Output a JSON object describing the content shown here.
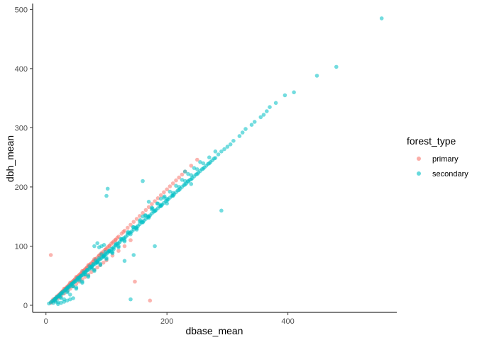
{
  "chart_data": {
    "type": "scatter",
    "title": "",
    "xlabel": "dbase_mean",
    "ylabel": "dbh_mean",
    "xlim": [
      -22,
      580
    ],
    "ylim": [
      -12,
      510
    ],
    "x_ticks": [
      0,
      200,
      400
    ],
    "y_ticks": [
      0,
      100,
      200,
      300,
      400,
      500
    ],
    "grid": false,
    "legend": {
      "title": "forest_type",
      "placement": "right"
    },
    "series": [
      {
        "name": "primary",
        "color": "#F8766D",
        "x": [
          8,
          10,
          12,
          14,
          15,
          16,
          18,
          20,
          22,
          24,
          25,
          26,
          28,
          30,
          30,
          32,
          34,
          35,
          36,
          38,
          40,
          40,
          42,
          44,
          45,
          46,
          48,
          50,
          50,
          52,
          54,
          55,
          56,
          58,
          60,
          60,
          62,
          64,
          65,
          66,
          68,
          70,
          70,
          72,
          74,
          75,
          78,
          80,
          80,
          82,
          85,
          88,
          90,
          92,
          95,
          98,
          100,
          102,
          105,
          108,
          110,
          112,
          115,
          118,
          120,
          125,
          128,
          130,
          135,
          140,
          145,
          150,
          155,
          160,
          165,
          170,
          175,
          180,
          185,
          190,
          195,
          200,
          205,
          210,
          215,
          220,
          225,
          230,
          240,
          250,
          8,
          172,
          147,
          15,
          20,
          25,
          30,
          35,
          40,
          45,
          50,
          55,
          60,
          65,
          70,
          75,
          80,
          85,
          90,
          95,
          100,
          110,
          120,
          130,
          140,
          12,
          18,
          22,
          28,
          32,
          38,
          42,
          48,
          52,
          58,
          62,
          68,
          72,
          78,
          82,
          88,
          92,
          98,
          105,
          115
        ],
        "y": [
          4,
          6,
          8,
          10,
          11,
          12,
          14,
          16,
          18,
          20,
          21,
          22,
          24,
          26,
          28,
          28,
          30,
          31,
          32,
          34,
          36,
          38,
          38,
          40,
          41,
          42,
          44,
          46,
          48,
          48,
          50,
          51,
          52,
          54,
          56,
          58,
          58,
          60,
          61,
          62,
          64,
          66,
          68,
          68,
          70,
          71,
          74,
          76,
          78,
          78,
          81,
          84,
          86,
          88,
          91,
          94,
          96,
          98,
          101,
          104,
          106,
          108,
          111,
          114,
          116,
          121,
          124,
          126,
          131,
          136,
          141,
          146,
          151,
          156,
          161,
          166,
          171,
          176,
          181,
          186,
          191,
          196,
          201,
          206,
          211,
          216,
          221,
          226,
          236,
          246,
          85,
          8,
          40,
          8,
          12,
          16,
          20,
          24,
          28,
          32,
          36,
          40,
          44,
          48,
          52,
          56,
          60,
          64,
          68,
          72,
          76,
          84,
          92,
          100,
          110,
          10,
          15,
          18,
          24,
          28,
          34,
          38,
          44,
          48,
          54,
          58,
          64,
          68,
          74,
          78,
          84,
          88,
          94,
          100,
          110
        ]
      },
      {
        "name": "secondary",
        "color": "#00BFC4",
        "x": [
          5,
          8,
          10,
          12,
          14,
          15,
          16,
          18,
          20,
          22,
          24,
          25,
          26,
          28,
          30,
          32,
          34,
          35,
          36,
          38,
          40,
          42,
          44,
          45,
          46,
          48,
          50,
          52,
          54,
          55,
          56,
          58,
          60,
          62,
          64,
          65,
          66,
          68,
          70,
          72,
          74,
          75,
          76,
          78,
          80,
          82,
          84,
          85,
          86,
          88,
          90,
          92,
          94,
          95,
          96,
          98,
          100,
          102,
          104,
          105,
          108,
          110,
          112,
          115,
          118,
          120,
          122,
          125,
          128,
          130,
          132,
          135,
          138,
          140,
          142,
          145,
          148,
          150,
          152,
          155,
          158,
          160,
          162,
          165,
          168,
          170,
          172,
          175,
          178,
          180,
          182,
          185,
          188,
          190,
          192,
          195,
          198,
          200,
          202,
          205,
          208,
          210,
          212,
          215,
          218,
          220,
          222,
          225,
          228,
          230,
          232,
          235,
          238,
          240,
          242,
          245,
          248,
          250,
          252,
          255,
          258,
          260,
          262,
          265,
          268,
          270,
          272,
          275,
          278,
          280,
          285,
          290,
          295,
          300,
          305,
          310,
          320,
          325,
          330,
          340,
          345,
          355,
          360,
          365,
          370,
          380,
          395,
          410,
          448,
          480,
          555,
          100,
          102,
          140,
          160,
          170,
          180,
          230,
          235,
          240,
          290,
          20,
          30,
          40,
          50,
          60,
          70,
          80,
          90,
          100,
          110,
          120,
          130,
          150,
          170,
          190,
          210,
          25,
          35,
          45,
          55,
          65,
          75,
          85,
          95,
          105,
          115,
          125,
          135,
          145,
          155,
          165,
          175,
          185,
          195,
          205,
          215,
          225,
          235,
          245,
          255,
          15,
          18,
          22,
          28,
          32,
          38,
          42,
          48,
          52,
          58,
          62,
          68,
          72,
          78,
          82,
          88,
          92,
          98,
          50,
          60,
          70,
          80,
          90,
          100,
          110,
          120,
          130,
          140,
          150,
          160,
          170,
          180,
          190,
          200,
          210,
          220,
          230,
          240,
          250,
          260,
          270,
          280,
          20,
          25,
          30,
          35,
          40,
          45,
          12,
          16,
          24,
          36,
          44,
          56,
          64,
          76,
          84,
          96,
          104,
          116,
          124,
          136,
          144,
          156,
          164,
          176,
          184,
          196,
          80,
          85,
          88,
          92,
          96,
          108,
          112,
          130,
          145,
          160,
          175,
          190,
          200
        ],
        "y": [
          3,
          5,
          7,
          8,
          10,
          11,
          12,
          14,
          15,
          17,
          19,
          20,
          21,
          23,
          24,
          26,
          28,
          29,
          30,
          32,
          33,
          35,
          37,
          38,
          39,
          41,
          42,
          44,
          46,
          47,
          48,
          50,
          51,
          53,
          55,
          56,
          57,
          59,
          60,
          62,
          64,
          65,
          66,
          68,
          69,
          71,
          73,
          74,
          75,
          77,
          78,
          80,
          82,
          83,
          84,
          86,
          87,
          89,
          91,
          92,
          95,
          96,
          98,
          101,
          104,
          105,
          107,
          110,
          113,
          114,
          116,
          119,
          122,
          123,
          125,
          128,
          131,
          132,
          134,
          137,
          140,
          141,
          143,
          146,
          149,
          150,
          152,
          155,
          158,
          159,
          161,
          164,
          167,
          168,
          170,
          173,
          176,
          177,
          179,
          182,
          185,
          186,
          188,
          191,
          194,
          195,
          197,
          200,
          203,
          204,
          206,
          209,
          212,
          213,
          215,
          218,
          221,
          222,
          224,
          227,
          230,
          231,
          233,
          236,
          239,
          240,
          242,
          245,
          248,
          249,
          255,
          260,
          264,
          268,
          272,
          278,
          286,
          292,
          298,
          305,
          310,
          318,
          322,
          328,
          335,
          342,
          355,
          360,
          388,
          403,
          485,
          185,
          197,
          10,
          210,
          175,
          100,
          226,
          210,
          205,
          160,
          5,
          10,
          18,
          28,
          38,
          48,
          58,
          68,
          78,
          88,
          98,
          108,
          128,
          148,
          168,
          185,
          12,
          22,
          32,
          42,
          52,
          62,
          72,
          82,
          92,
          102,
          112,
          122,
          132,
          142,
          152,
          162,
          172,
          182,
          192,
          202,
          212,
          222,
          232,
          242,
          8,
          12,
          16,
          20,
          26,
          30,
          36,
          40,
          46,
          50,
          56,
          60,
          66,
          70,
          76,
          80,
          86,
          90,
          30,
          40,
          50,
          60,
          70,
          80,
          90,
          100,
          110,
          120,
          130,
          140,
          150,
          160,
          170,
          180,
          190,
          200,
          210,
          220,
          230,
          240,
          250,
          260,
          2,
          4,
          6,
          8,
          10,
          12,
          4,
          6,
          14,
          24,
          32,
          44,
          52,
          64,
          72,
          84,
          92,
          104,
          112,
          124,
          132,
          144,
          152,
          164,
          172,
          184,
          100,
          105,
          98,
          100,
          102,
          90,
          95,
          75,
          85,
          150,
          165,
          180,
          172
        ]
      }
    ]
  }
}
